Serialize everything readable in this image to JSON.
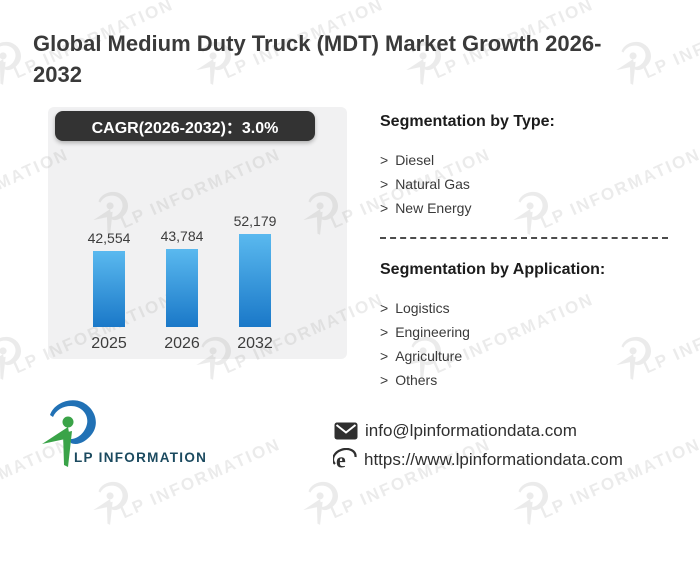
{
  "page": {
    "title": "Global Medium Duty Truck (MDT) Market Growth 2026-2032"
  },
  "chart_data": {
    "type": "bar",
    "title": "CAGR(2026-2032)：3.0%",
    "categories": [
      "2025",
      "2026",
      "2032"
    ],
    "values": [
      42554,
      43784,
      52179
    ],
    "value_labels": [
      "42,554",
      "43,784",
      "52,179"
    ],
    "xlabel": "",
    "ylabel": "",
    "legend": "none",
    "grid": false,
    "bar_color_top": "#5ab9ef",
    "bar_color_bottom": "#1a78c8"
  },
  "segmentation_type": {
    "heading": "Segmentation by Type:",
    "items": [
      "Diesel",
      "Natural Gas",
      "New Energy"
    ]
  },
  "segmentation_application": {
    "heading": "Segmentation by Application:",
    "items": [
      "Logistics",
      "Engineering",
      "Agriculture",
      "Others"
    ]
  },
  "ui": {
    "bullet": ">"
  },
  "watermark": {
    "text": "LP INFORMATION"
  },
  "footer": {
    "logo_text": "LP INFORMATION",
    "email": "info@lpinformationdata.com",
    "website": "https://www.lpinformationdata.com"
  },
  "colors": {
    "badge_bg": "#333333",
    "panel_bg": "#f1f1f2",
    "title_text": "#3a3a3a",
    "logo_text": "#1b4a5f",
    "logo_green": "#3aa348",
    "logo_blue": "#2171b5"
  }
}
